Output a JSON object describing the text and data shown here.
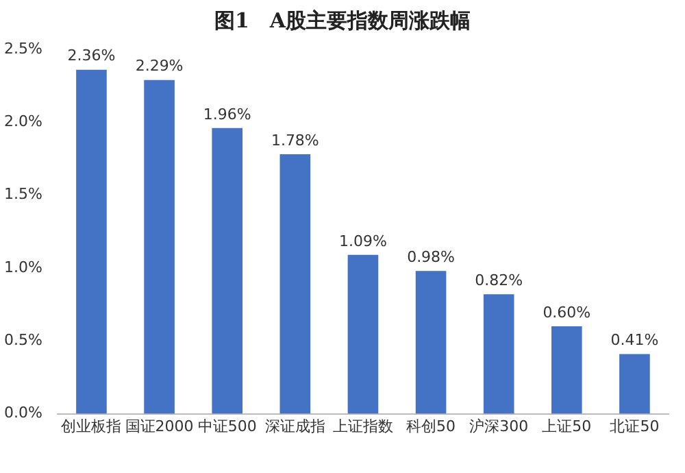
{
  "chart_data": {
    "type": "bar",
    "title": "图1　A股主要指数周涨跌幅",
    "categories": [
      "创业板指",
      "国证2000",
      "中证500",
      "深证成指",
      "上证指数",
      "科创50",
      "沪深300",
      "上证50",
      "北证50"
    ],
    "values": [
      2.36,
      2.29,
      1.96,
      1.78,
      1.09,
      0.98,
      0.82,
      0.6,
      0.41
    ],
    "value_labels": [
      "2.36%",
      "2.29%",
      "1.96%",
      "1.78%",
      "1.09%",
      "0.98%",
      "0.82%",
      "0.60%",
      "0.41%"
    ],
    "color": "#4472c4",
    "ylim": [
      0,
      2.5
    ],
    "yticks": [
      {
        "value": 0,
        "label": "0.0%"
      },
      {
        "value": 0.5,
        "label": "0.5%"
      },
      {
        "value": 1,
        "label": "1.0%"
      },
      {
        "value": 1.5,
        "label": "1.5%"
      },
      {
        "value": 2,
        "label": "2.0%"
      },
      {
        "value": 2.5,
        "label": "2.5%"
      }
    ],
    "grid": false,
    "legend": false
  }
}
